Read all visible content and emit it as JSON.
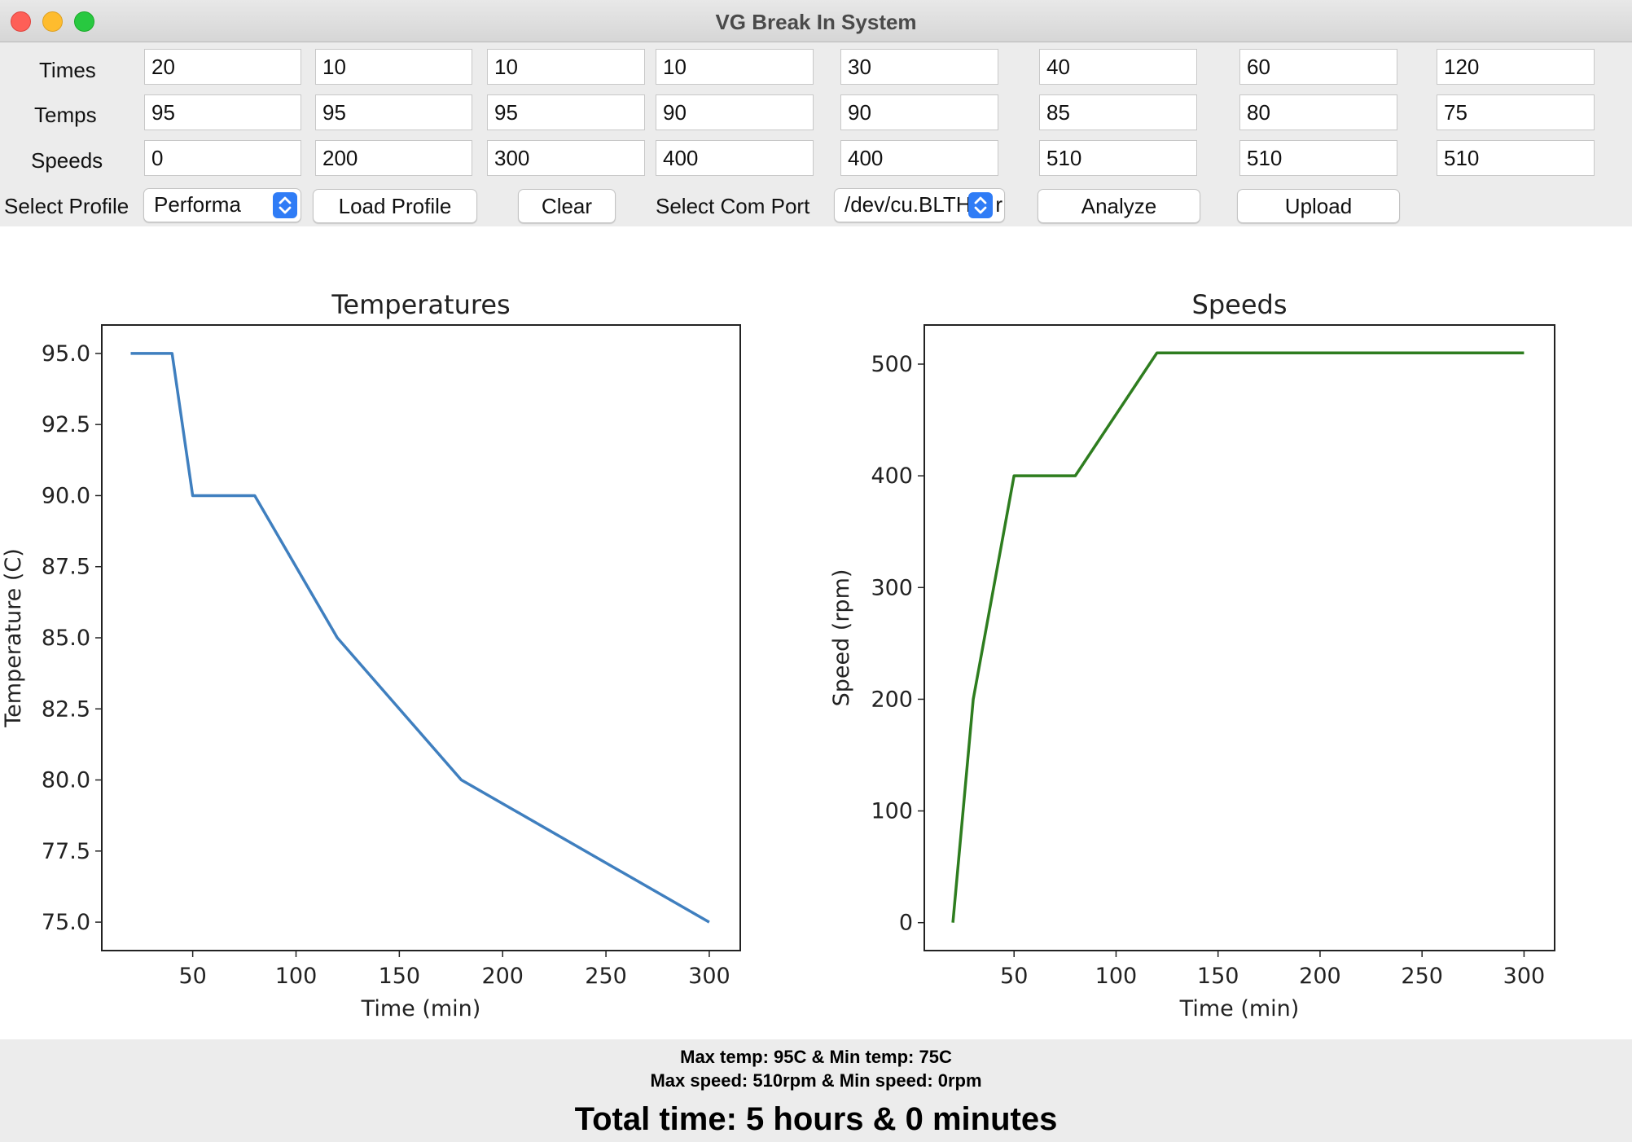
{
  "window": {
    "title": "VG Break In System"
  },
  "rows": [
    {
      "label": "Times",
      "values": [
        "20",
        "10",
        "10",
        "10",
        "30",
        "40",
        "60",
        "120"
      ]
    },
    {
      "label": "Temps",
      "values": [
        "95",
        "95",
        "95",
        "90",
        "90",
        "85",
        "80",
        "75"
      ]
    },
    {
      "label": "Speeds",
      "values": [
        "0",
        "200",
        "300",
        "400",
        "400",
        "510",
        "510",
        "510"
      ]
    }
  ],
  "toolbar": {
    "select_profile_label": "Select Profile",
    "profile_value": "Performa",
    "load_profile": "Load Profile",
    "clear": "Clear",
    "select_com_port_label": "Select Com Port",
    "com_port_value": "/dev/cu.BLTH",
    "com_port_suffix": "r",
    "analyze": "Analyze",
    "upload": "Upload",
    "accent_color": "#2f7cf6"
  },
  "chart_data": [
    {
      "type": "line",
      "title": "Temperatures",
      "xlabel": "Time (min)",
      "ylabel": "Temperature (C)",
      "xlim": [
        6,
        315
      ],
      "ylim": [
        74.0,
        96.0
      ],
      "xticks": [
        50,
        100,
        150,
        200,
        250,
        300
      ],
      "xtick_labels": [
        "50",
        "100",
        "150",
        "200",
        "250",
        "300"
      ],
      "yticks": [
        75.0,
        77.5,
        80.0,
        82.5,
        85.0,
        87.5,
        90.0,
        92.5,
        95.0
      ],
      "ytick_labels": [
        "75.0",
        "77.5",
        "80.0",
        "82.5",
        "85.0",
        "87.5",
        "90.0",
        "92.5",
        "95.0"
      ],
      "grid": false,
      "color": "#3f7fbf",
      "x": [
        20,
        40,
        50,
        80,
        120,
        180,
        300
      ],
      "y": [
        95,
        95,
        90,
        90,
        85,
        80,
        75
      ]
    },
    {
      "type": "line",
      "title": "Speeds",
      "xlabel": "Time (min)",
      "ylabel": "Speed (rpm)",
      "xlim": [
        6,
        315
      ],
      "ylim": [
        -25,
        535
      ],
      "xticks": [
        50,
        100,
        150,
        200,
        250,
        300
      ],
      "xtick_labels": [
        "50",
        "100",
        "150",
        "200",
        "250",
        "300"
      ],
      "yticks": [
        0,
        100,
        200,
        300,
        400,
        500
      ],
      "ytick_labels": [
        "0",
        "100",
        "200",
        "300",
        "400",
        "500"
      ],
      "grid": false,
      "color": "#2e7d1f",
      "x": [
        20,
        30,
        50,
        80,
        120,
        300
      ],
      "y": [
        0,
        200,
        400,
        400,
        510,
        510
      ]
    }
  ],
  "summary": {
    "line1": "Max temp: 95C & Min temp: 75C",
    "line2": "Max speed: 510rpm & Min speed: 0rpm",
    "total": "Total time: 5 hours & 0 minutes"
  }
}
